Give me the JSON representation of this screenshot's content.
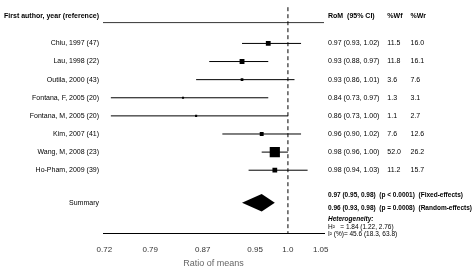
{
  "chart_data": {
    "type": "forest",
    "xlabel": "Ratio of means",
    "xlim": [
      0.718,
      1.055
    ],
    "xticks": [
      0.72,
      0.79,
      0.87,
      0.95,
      {
        "value": 1.0,
        "label": "1.0"
      },
      1.05
    ],
    "grid": false,
    "color": "#000000",
    "reference_line": 1.0,
    "headers": {
      "label": "First author, year (reference)",
      "estimate": "RoM  (95% CI)",
      "wf": "%Wf",
      "wr": "%Wr"
    },
    "studies": [
      {
        "label": "Chiu, 1997 (47)",
        "value": 0.97,
        "ci": [
          0.93,
          1.02
        ],
        "value_label": "0.97 (0.93, 1.02)",
        "wf": {
          "value": 11.5,
          "label": "11.5"
        },
        "wr": "16.0"
      },
      {
        "label": "Lau, 1998 (22)",
        "value": 0.93,
        "ci": [
          0.88,
          0.97
        ],
        "value_label": "0.93 (0.88, 0.97)",
        "wf": {
          "value": 11.8,
          "label": "11.8"
        },
        "wr": "16.1"
      },
      {
        "label": "Outila, 2000 (43)",
        "value": 0.93,
        "ci": [
          0.86,
          1.01
        ],
        "value_label": "0.93 (0.86, 1.01)",
        "wf": {
          "value": 3.6,
          "label": "3.6"
        },
        "wr": "7.6"
      },
      {
        "label": "Fontana, F, 2005 (20)",
        "value": 0.84,
        "ci": [
          0.73,
          0.97
        ],
        "value_label": "0.84 (0.73, 0.97)",
        "wf": {
          "value": 1.3,
          "label": "1.3"
        },
        "wr": "3.1"
      },
      {
        "label": "Fontana, M, 2005 (20)",
        "value": 0.86,
        "ci": [
          0.73,
          1.0
        ],
        "value_label": "0.86 (0.73, 1.00)",
        "wf": {
          "value": 1.1,
          "label": "1.1"
        },
        "wr": "2.7"
      },
      {
        "label": "Kim, 2007 (41)",
        "value": 0.96,
        "ci": [
          0.9,
          1.02
        ],
        "value_label": "0.96 (0.90, 1.02)",
        "wf": {
          "value": 7.6,
          "label": "7.6"
        },
        "wr": "12.6"
      },
      {
        "label": "Wang, M, 2008 (23)",
        "value": 0.98,
        "ci": [
          0.96,
          1.0
        ],
        "value_label": "0.98 (0.96, 1.00)",
        "wf": {
          "value": 52.0,
          "label": "52.0"
        },
        "wr": "26.2"
      },
      {
        "label": "Ho-Pham, 2009 (39)",
        "value": 0.98,
        "ci": [
          0.94,
          1.03
        ],
        "value_label": "0.98 (0.94, 1.03)",
        "wf": {
          "value": 11.2,
          "label": "11.2"
        },
        "wr": "15.7"
      }
    ],
    "summary": {
      "label": "Summary",
      "value": 0.96,
      "ci": [
        0.93,
        0.98
      ],
      "lines": [
        "0.97 (0.95, 0.98)  (p < 0.0001)  (Fixed-effects)",
        "0.96 (0.93, 0.98)  (p = 0.0008)  (Random-effects)"
      ]
    },
    "heterogeneity": {
      "title": "Heterogeneity:",
      "lines": [
        "H²   = 1.84 (1.22, 2.76)",
        "I² (%)= 45.6 (18.3, 63.8)"
      ]
    }
  }
}
